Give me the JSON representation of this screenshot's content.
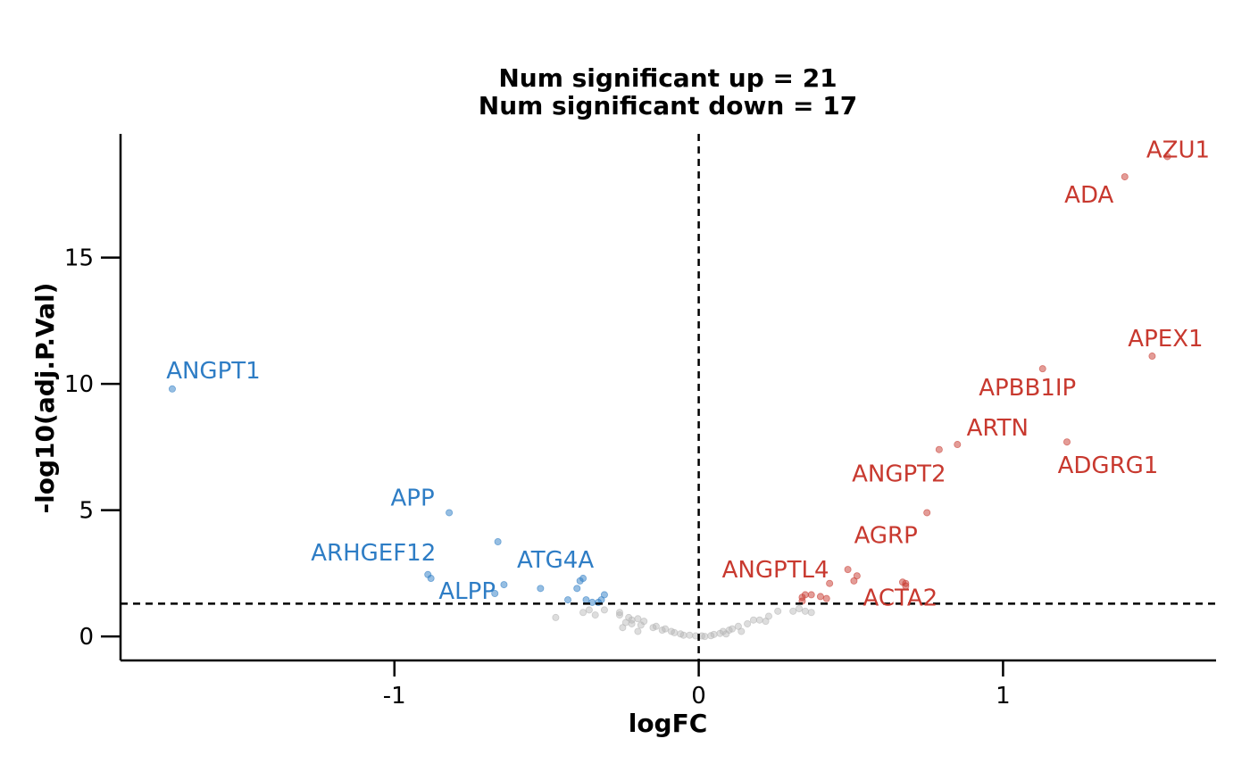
{
  "chart_data": {
    "type": "scatter",
    "title_lines": [
      "Num significant up = 21",
      "Num significant down = 17"
    ],
    "xlabel": "logFC",
    "ylabel": "-log10(adj.P.Val)",
    "xlim": [
      -1.9,
      1.7
    ],
    "ylim": [
      -0.95,
      19.9
    ],
    "x_ticks": [
      -1,
      0,
      1
    ],
    "x_tick_labels": [
      "-1",
      "0",
      "1"
    ],
    "y_ticks": [
      0,
      5,
      10,
      15
    ],
    "y_tick_labels": [
      "0",
      "5",
      "10",
      "15"
    ],
    "grid": false,
    "thresholds": {
      "logFC": 0,
      "neg_log10_padj": 1.3
    },
    "colors": {
      "up": "#c8392f",
      "down": "#2e7dc5",
      "ns": "#b4b4b4",
      "line": "#000000"
    },
    "points": {
      "up": [
        [
          1.54,
          19.0
        ],
        [
          1.4,
          18.2
        ],
        [
          1.13,
          10.6
        ],
        [
          1.49,
          11.1
        ],
        [
          0.85,
          7.6
        ],
        [
          0.79,
          7.4
        ],
        [
          1.21,
          7.7
        ],
        [
          0.75,
          4.9
        ],
        [
          0.49,
          2.65
        ],
        [
          0.52,
          2.4
        ],
        [
          0.51,
          2.2
        ],
        [
          0.43,
          2.1
        ],
        [
          0.67,
          2.15
        ],
        [
          0.68,
          2.0
        ],
        [
          0.34,
          1.55
        ],
        [
          0.35,
          1.65
        ],
        [
          0.37,
          1.65
        ],
        [
          0.4,
          1.58
        ],
        [
          0.42,
          1.5
        ],
        [
          0.34,
          1.4
        ],
        [
          0.68,
          2.1
        ]
      ],
      "down": [
        [
          -1.73,
          9.8
        ],
        [
          -0.82,
          4.9
        ],
        [
          -0.66,
          3.75
        ],
        [
          -0.89,
          2.45
        ],
        [
          -0.88,
          2.3
        ],
        [
          -0.64,
          2.05
        ],
        [
          -0.52,
          1.9
        ],
        [
          -0.4,
          1.9
        ],
        [
          -0.39,
          2.2
        ],
        [
          -0.38,
          2.3
        ],
        [
          -0.67,
          1.7
        ],
        [
          -0.43,
          1.45
        ],
        [
          -0.37,
          1.45
        ],
        [
          -0.31,
          1.65
        ],
        [
          -0.32,
          1.45
        ],
        [
          -0.35,
          1.35
        ],
        [
          -0.33,
          1.35
        ]
      ],
      "ns": [
        [
          -0.47,
          0.75
        ],
        [
          -0.38,
          0.95
        ],
        [
          -0.36,
          1.05
        ],
        [
          -0.34,
          0.85
        ],
        [
          -0.31,
          1.05
        ],
        [
          -0.26,
          0.95
        ],
        [
          -0.26,
          0.85
        ],
        [
          -0.23,
          0.75
        ],
        [
          -0.22,
          0.65
        ],
        [
          -0.2,
          0.7
        ],
        [
          -0.18,
          0.6
        ],
        [
          -0.22,
          0.5
        ],
        [
          -0.25,
          0.35
        ],
        [
          -0.19,
          0.45
        ],
        [
          -0.2,
          0.2
        ],
        [
          -0.15,
          0.35
        ],
        [
          -0.14,
          0.4
        ],
        [
          -0.11,
          0.3
        ],
        [
          -0.09,
          0.2
        ],
        [
          -0.08,
          0.15
        ],
        [
          -0.06,
          0.1
        ],
        [
          -0.05,
          0.05
        ],
        [
          -0.03,
          0.05
        ],
        [
          -0.01,
          0.02
        ],
        [
          0.01,
          0.02
        ],
        [
          0.02,
          0.0
        ],
        [
          0.04,
          0.03
        ],
        [
          0.05,
          0.08
        ],
        [
          0.07,
          0.12
        ],
        [
          0.08,
          0.2
        ],
        [
          0.1,
          0.25
        ],
        [
          0.11,
          0.3
        ],
        [
          0.13,
          0.4
        ],
        [
          0.16,
          0.5
        ],
        [
          0.18,
          0.65
        ],
        [
          0.2,
          0.65
        ],
        [
          0.22,
          0.6
        ],
        [
          0.23,
          0.8
        ],
        [
          0.26,
          1.0
        ],
        [
          0.31,
          1.0
        ],
        [
          0.33,
          1.1
        ],
        [
          0.35,
          1.0
        ],
        [
          0.37,
          0.95
        ],
        [
          0.14,
          0.2
        ],
        [
          0.09,
          0.1
        ],
        [
          -0.12,
          0.25
        ],
        [
          -0.24,
          0.55
        ]
      ]
    },
    "labels": {
      "up": [
        {
          "text": "AZU1",
          "x": 1.54,
          "y": 19.0
        },
        {
          "text": "ADA",
          "x": 1.4,
          "y": 18.2
        },
        {
          "text": "APEX1",
          "x": 1.49,
          "y": 11.1
        },
        {
          "text": "APBB1IP",
          "x": 1.13,
          "y": 10.6
        },
        {
          "text": "ARTN",
          "x": 0.85,
          "y": 7.6
        },
        {
          "text": "ADGRG1",
          "x": 1.21,
          "y": 7.7
        },
        {
          "text": "ANGPT2",
          "x": 0.79,
          "y": 7.4
        },
        {
          "text": "AGRP",
          "x": 0.75,
          "y": 4.9
        },
        {
          "text": "ANGPTL4",
          "x": 0.49,
          "y": 2.65
        },
        {
          "text": "ACTA2",
          "x": 0.68,
          "y": 2.1
        }
      ],
      "down": [
        {
          "text": "ANGPT1",
          "x": -1.73,
          "y": 9.8
        },
        {
          "text": "APP",
          "x": -0.82,
          "y": 4.9
        },
        {
          "text": "ARHGEF12",
          "x": -0.89,
          "y": 2.45
        },
        {
          "text": "ATG4A",
          "x": -0.38,
          "y": 2.3
        },
        {
          "text": "ALPP",
          "x": -0.67,
          "y": 1.7
        }
      ]
    }
  }
}
